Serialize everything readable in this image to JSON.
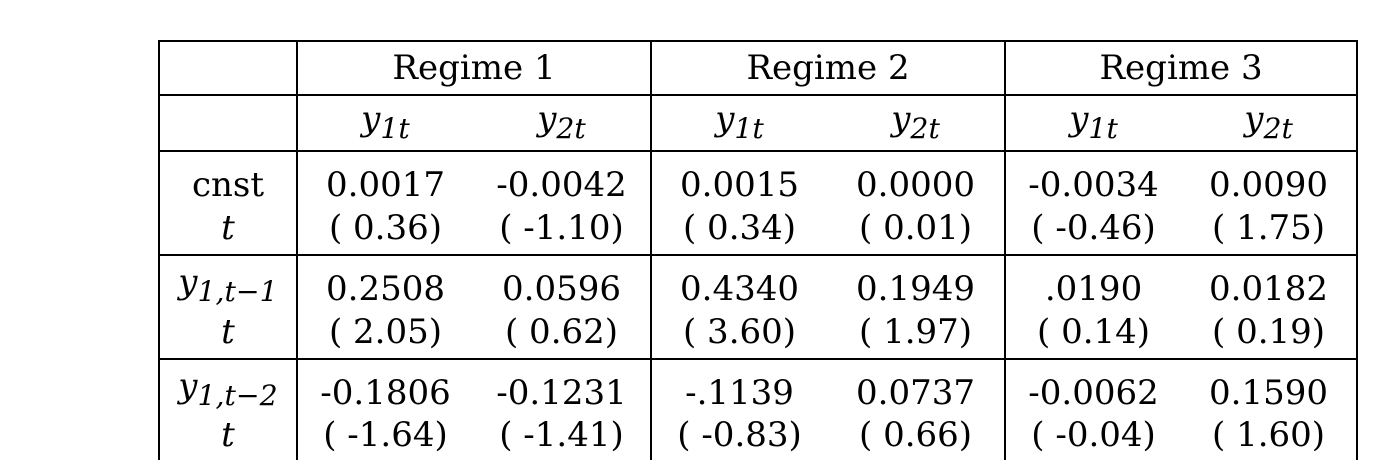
{
  "table": {
    "regimes": [
      "Regime 1",
      "Regime 2",
      "Regime 3"
    ],
    "sub_headers": [
      {
        "var": "y",
        "sub": "1t"
      },
      {
        "var": "y",
        "sub": "2t"
      },
      {
        "var": "y",
        "sub": "1t"
      },
      {
        "var": "y",
        "sub": "2t"
      },
      {
        "var": "y",
        "sub": "1t"
      },
      {
        "var": "y",
        "sub": "2t"
      }
    ],
    "rows": [
      {
        "label": "cnst",
        "label_italic_var": "",
        "label_sub": "",
        "values": [
          "0.0017",
          "-0.0042",
          "0.0015",
          "0.0000",
          "-0.0034",
          "0.0090"
        ],
        "t_label": "t",
        "t_values": [
          "( 0.36)",
          "( -1.10)",
          "( 0.34)",
          "( 0.01)",
          "( -0.46)",
          "( 1.75)"
        ]
      },
      {
        "label": "",
        "label_italic_var": "y",
        "label_sub": "1,t−1",
        "values": [
          "0.2508",
          "0.0596",
          "0.4340",
          "0.1949",
          ".0190",
          "0.0182"
        ],
        "t_label": "t",
        "t_values": [
          "( 2.05)",
          "( 0.62)",
          "( 3.60)",
          "( 1.97)",
          "( 0.14)",
          "( 0.19)"
        ]
      },
      {
        "label": "",
        "label_italic_var": "y",
        "label_sub": "1,t−2",
        "values": [
          "-0.1806",
          "-0.1231",
          "-.1139",
          "0.0737",
          "-0.0062",
          "0.1590"
        ],
        "t_label": "t",
        "t_values": [
          "( -1.64)",
          "( -1.41)",
          "( -0.83)",
          "( 0.66)",
          "( -0.04)",
          "( 1.60)"
        ]
      }
    ]
  }
}
